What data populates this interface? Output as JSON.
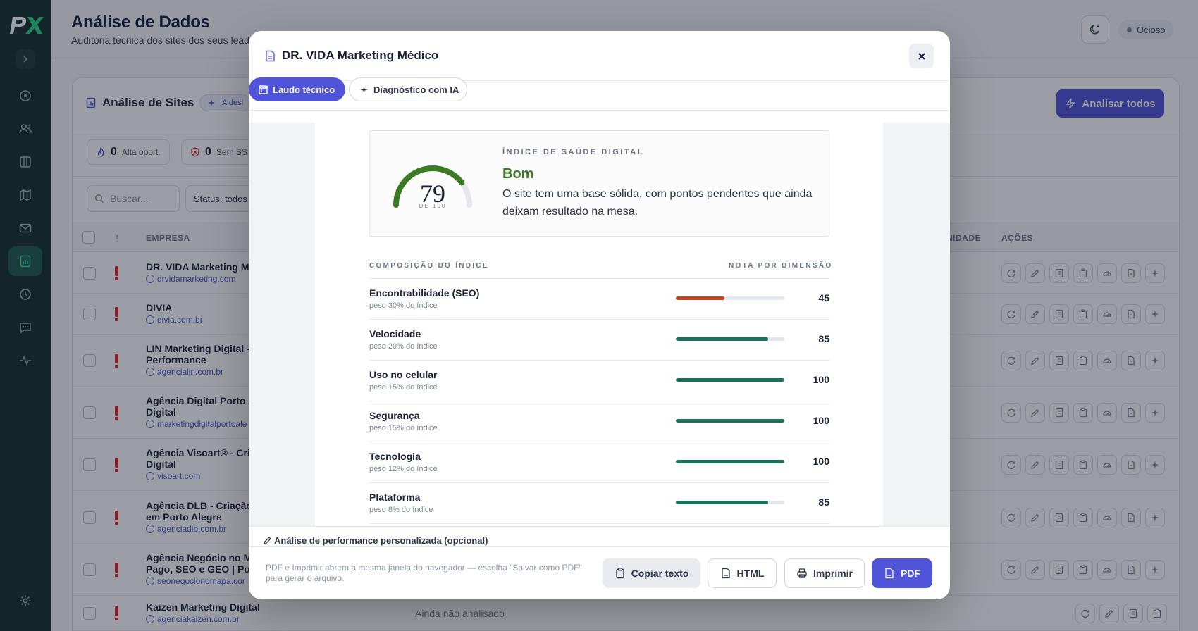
{
  "app": {
    "page_title": "Análise de Dados",
    "page_subtitle": "Auditoria técnica dos sites dos seus leads",
    "status": "Ocioso"
  },
  "sidebar": {
    "items": [
      {
        "icon": "target-icon"
      },
      {
        "icon": "users-icon"
      },
      {
        "icon": "kanban-icon"
      },
      {
        "icon": "map-icon"
      },
      {
        "icon": "mail-icon"
      },
      {
        "icon": "chart-icon",
        "active": true
      },
      {
        "icon": "clock-icon"
      },
      {
        "icon": "chat-icon"
      },
      {
        "icon": "activity-icon"
      }
    ],
    "settings_icon": "gear-icon"
  },
  "card": {
    "title": "Análise de Sites",
    "ai_badge": "IA desl",
    "analyze_all": "Analisar todos",
    "stats": [
      {
        "value": "0",
        "label": "Alta oport."
      },
      {
        "value": "0",
        "label": "Sem SS"
      }
    ],
    "search_placeholder": "Buscar...",
    "status_filter": "Status: todos",
    "columns": {
      "empresa": "EMPRESA",
      "oportunidade": "NIDADE",
      "acoes": "AÇÕES"
    },
    "rows": [
      {
        "name": "DR. VIDA Marketing M",
        "url": "drvidamarketing.com"
      },
      {
        "name": "DIVIA",
        "url": "divia.com.br"
      },
      {
        "name": "LIN Marketing Digital -\nPerformance",
        "url": "agencialin.com.br"
      },
      {
        "name": "Agência Digital Porto A\nDigital",
        "url": "marketingdigitalportoale"
      },
      {
        "name": "Agência Visoart® - Cri\nDigital",
        "url": "visoart.com"
      },
      {
        "name": "Agência DLB - Criação\nem Porto Alegre",
        "url": "agenciadlb.com.br"
      },
      {
        "name": "Agência Negócio no M\nPago, SEO e GEO | Por",
        "url": "seonegocionomapa.cor"
      },
      {
        "name": "Kaizen Marketing Digital",
        "url": "agenciakaizen.com.br",
        "status": "Ainda não analisado"
      }
    ]
  },
  "modal": {
    "title": "DR. VIDA Marketing Médico",
    "tabs": {
      "report": "Laudo técnico",
      "ai": "Diagnóstico com IA"
    },
    "health": {
      "label": "ÍNDICE DE SAÚDE DIGITAL",
      "score": 79,
      "score_suffix": "DE 100",
      "rating": "Bom",
      "rating_color": "#3c7a23",
      "description": "O site tem uma base sólida, com pontos pendentes que ainda deixam resultado na mesa."
    },
    "composition": {
      "label_left": "COMPOSIÇÃO DO ÍNDICE",
      "label_right": "NOTA POR DIMENSÃO",
      "dimensions": [
        {
          "name": "Encontrabilidade (SEO)",
          "weight": "peso 30% do índice",
          "score": 45,
          "color": "#c9411d"
        },
        {
          "name": "Velocidade",
          "weight": "peso 20% do índice",
          "score": 85,
          "color": "#17725a"
        },
        {
          "name": "Uso no celular",
          "weight": "peso 15% do índice",
          "score": 100,
          "color": "#17725a"
        },
        {
          "name": "Segurança",
          "weight": "peso 15% do índice",
          "score": 100,
          "color": "#17725a"
        },
        {
          "name": "Tecnologia",
          "weight": "peso 12% do índice",
          "score": 100,
          "color": "#17725a"
        },
        {
          "name": "Plataforma",
          "weight": "peso 8% do índice",
          "score": 85,
          "color": "#17725a"
        }
      ]
    },
    "performance_label": "Análise de performance personalizada (opcional)",
    "footer_note": "PDF e Imprimir abrem a mesma janela do navegador — escolha \"Salvar como PDF\" para gerar o arquivo.",
    "buttons": {
      "copy": "Copiar texto",
      "html": "HTML",
      "print": "Imprimir",
      "pdf": "PDF"
    }
  }
}
